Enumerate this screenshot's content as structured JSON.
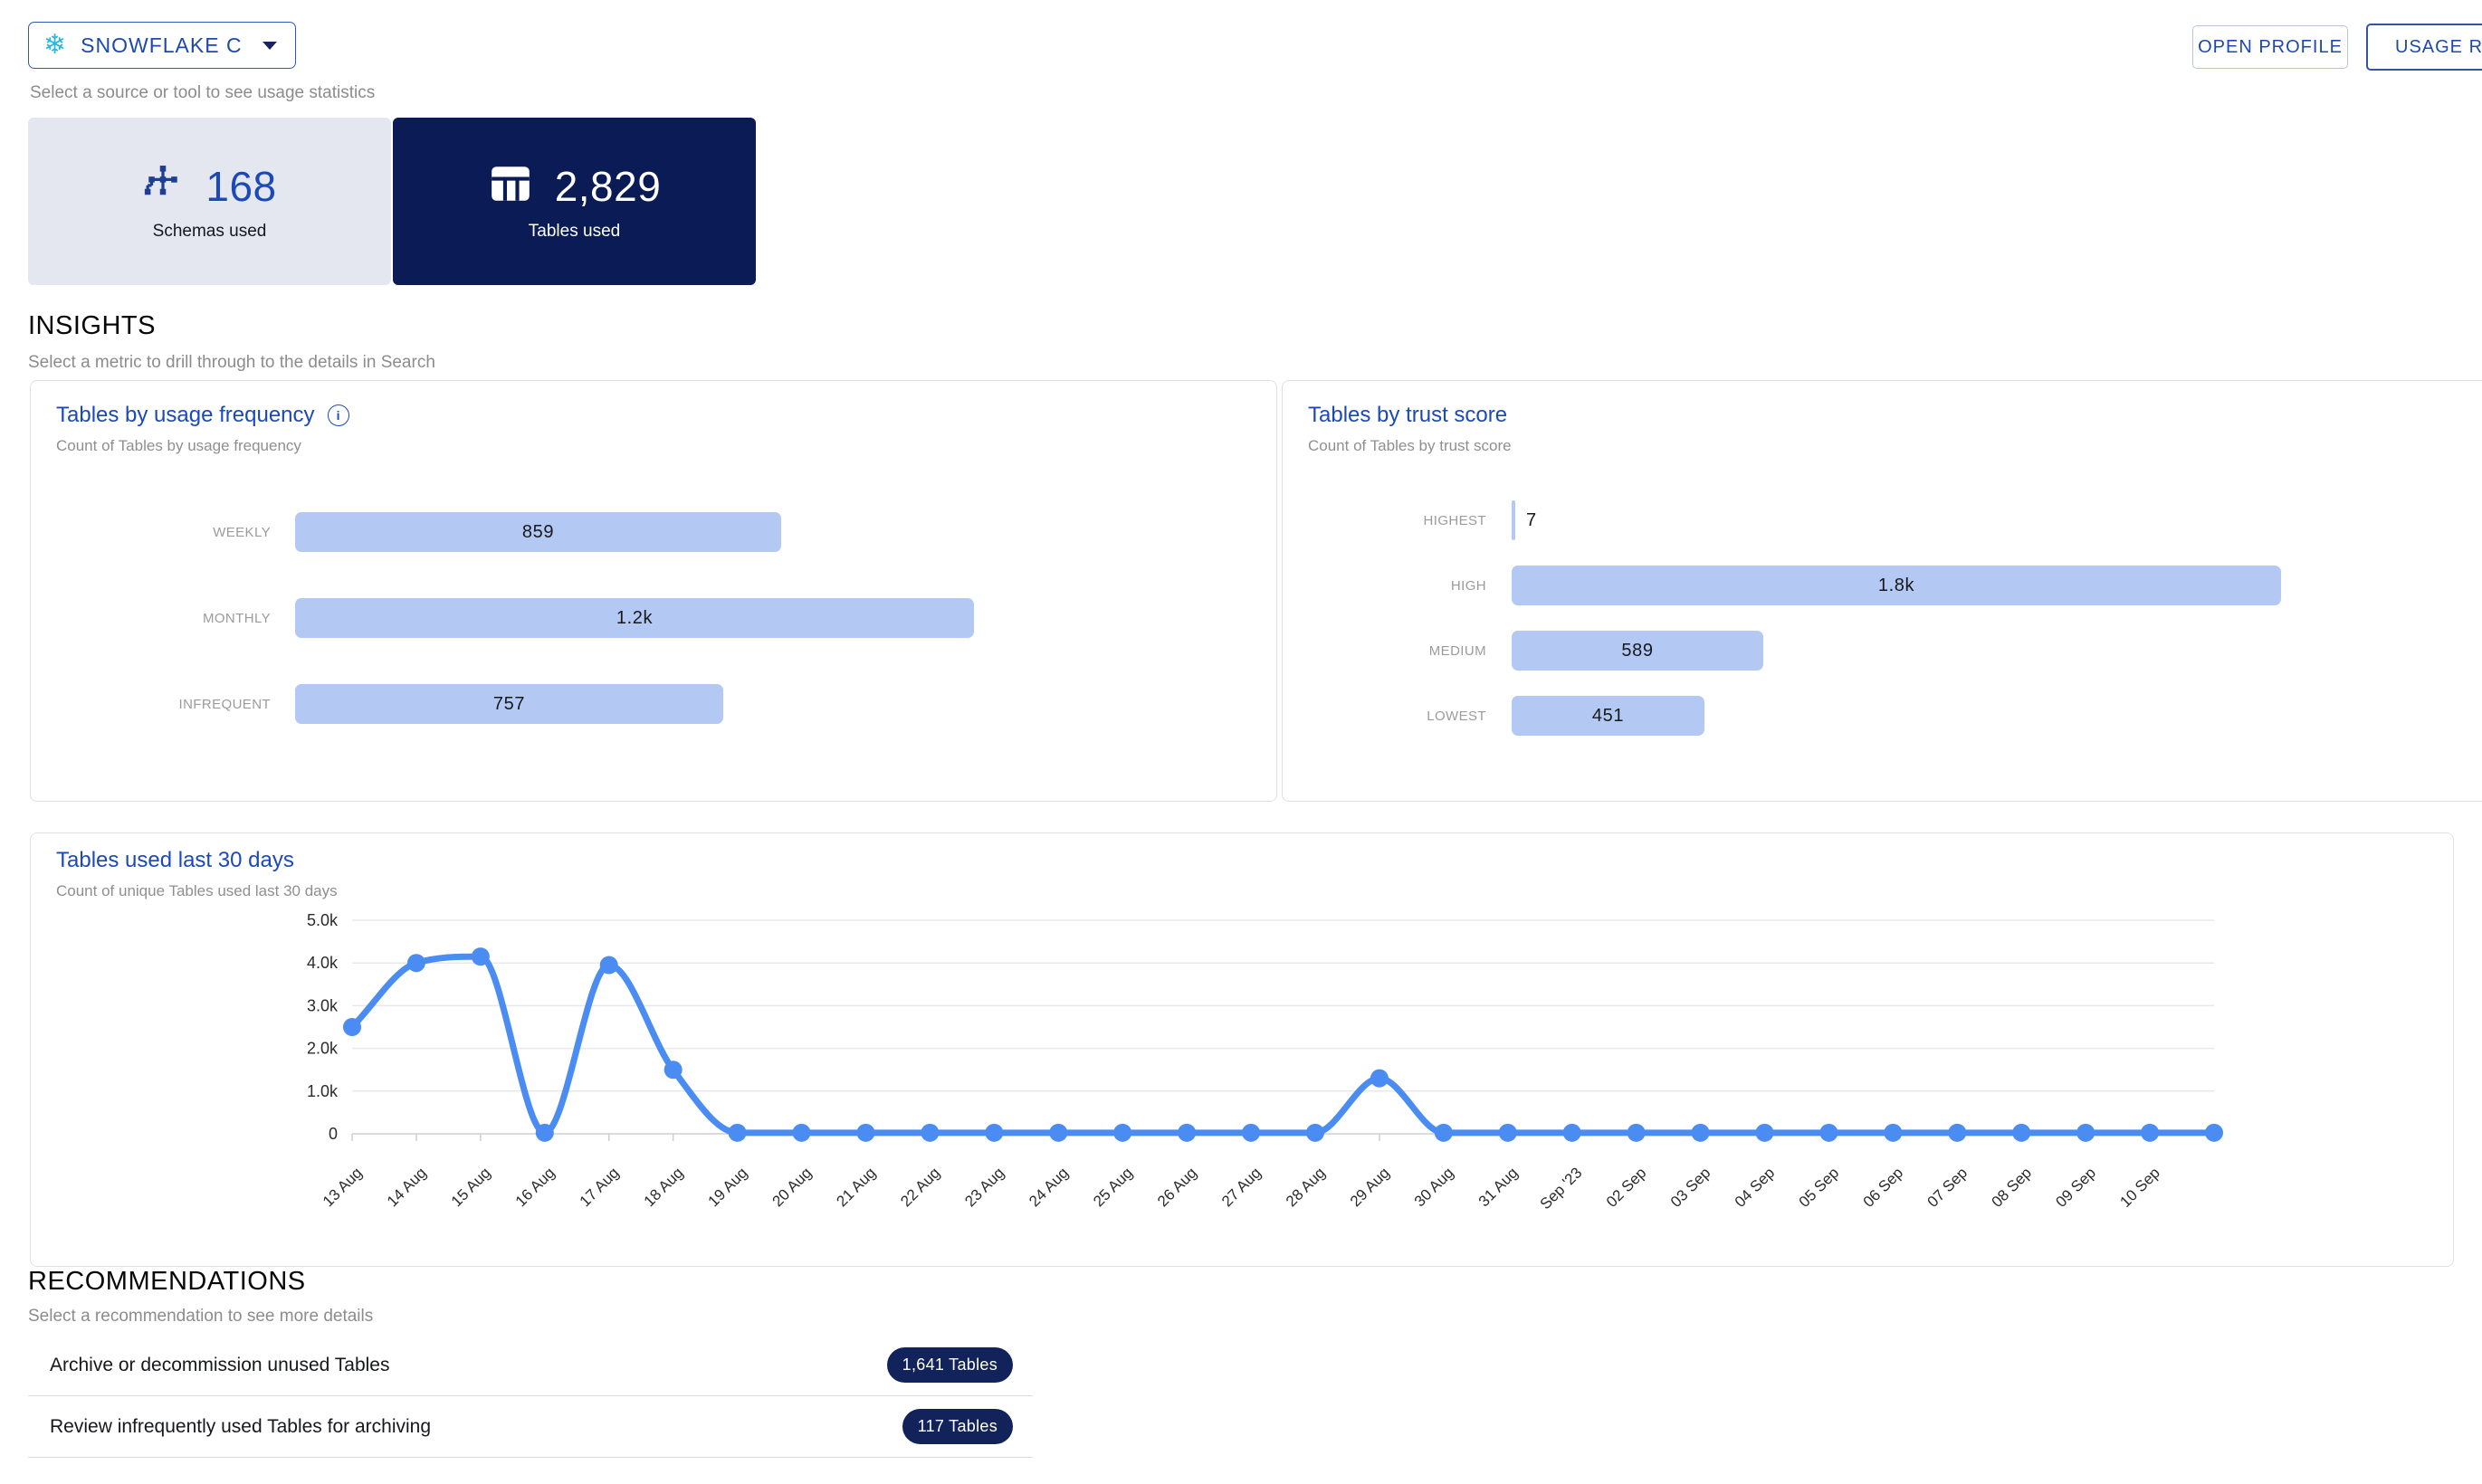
{
  "header": {
    "source_selector": {
      "label": "SNOWFLAKE C",
      "caption": "Select a source or tool to see usage statistics"
    },
    "actions": [
      {
        "label": "OPEN PROFILE"
      },
      {
        "label": "USAGE REPORT"
      }
    ]
  },
  "stats": [
    {
      "value": "168",
      "label": "Schemas used",
      "icon": "schema-icon",
      "selected": false
    },
    {
      "value": "2,829",
      "label": "Tables used",
      "icon": "table-icon",
      "selected": true
    }
  ],
  "insights": {
    "title": "INSIGHTS",
    "caption": "Select a metric to drill through to the details in Search"
  },
  "chart_data": [
    {
      "type": "bar",
      "title": "Tables by usage frequency",
      "subtitle": "Count of Tables by usage frequency",
      "has_info_icon": true,
      "orientation": "horizontal",
      "categories": [
        "WEEKLY",
        "MONTHLY",
        "INFREQUENT"
      ],
      "values": [
        859,
        1200,
        757
      ],
      "value_labels": [
        "859",
        "1.2k",
        "757"
      ],
      "bar_color": "#b3c9f3"
    },
    {
      "type": "bar",
      "title": "Tables by trust score",
      "subtitle": "Count of Tables by trust score",
      "has_info_icon": false,
      "orientation": "horizontal",
      "categories": [
        "HIGHEST",
        "HIGH",
        "MEDIUM",
        "LOWEST"
      ],
      "values": [
        7,
        1800,
        589,
        451
      ],
      "value_labels": [
        "7",
        "1.8k",
        "589",
        "451"
      ],
      "bar_color": "#b3c9f3"
    },
    {
      "type": "line",
      "title": "Tables used last 30 days",
      "subtitle": "Count of unique Tables used last 30 days",
      "x": [
        "13 Aug",
        "14 Aug",
        "15 Aug",
        "16 Aug",
        "17 Aug",
        "18 Aug",
        "19 Aug",
        "20 Aug",
        "21 Aug",
        "22 Aug",
        "23 Aug",
        "24 Aug",
        "25 Aug",
        "26 Aug",
        "27 Aug",
        "28 Aug",
        "29 Aug",
        "30 Aug",
        "31 Aug",
        "Sep '23",
        "02 Sep",
        "03 Sep",
        "04 Sep",
        "05 Sep",
        "06 Sep",
        "07 Sep",
        "08 Sep",
        "09 Sep",
        "10 Sep",
        ""
      ],
      "values": [
        2500,
        4000,
        4150,
        25,
        3950,
        1500,
        25,
        25,
        25,
        25,
        25,
        25,
        25,
        25,
        25,
        25,
        1300,
        25,
        25,
        25,
        25,
        25,
        25,
        25,
        25,
        25,
        25,
        25,
        25,
        25
      ],
      "ylim": [
        0,
        5000
      ],
      "yticks": [
        {
          "v": 0,
          "label": "0"
        },
        {
          "v": 1000,
          "label": "1.0k"
        },
        {
          "v": 2000,
          "label": "2.0k"
        },
        {
          "v": 3000,
          "label": "3.0k"
        },
        {
          "v": 4000,
          "label": "4.0k"
        },
        {
          "v": 5000,
          "label": "5.0k"
        }
      ],
      "grid": true,
      "legend": "none",
      "line_color": "#4a8cf2"
    }
  ],
  "recommendations": {
    "title": "RECOMMENDATIONS",
    "caption": "Select a recommendation to see more details",
    "items": [
      {
        "label": "Archive or decommission unused Tables",
        "badge": "1,641 Tables"
      },
      {
        "label": "Review infrequently used Tables for archiving",
        "badge": "117 Tables"
      }
    ]
  },
  "colors": {
    "accent_blue": "#1b4ab8",
    "navy": "#0a1b55",
    "bar_fill": "#b3c9f3",
    "line_blue": "#4a8cf2",
    "snowflake_blue": "#29b5e8"
  }
}
